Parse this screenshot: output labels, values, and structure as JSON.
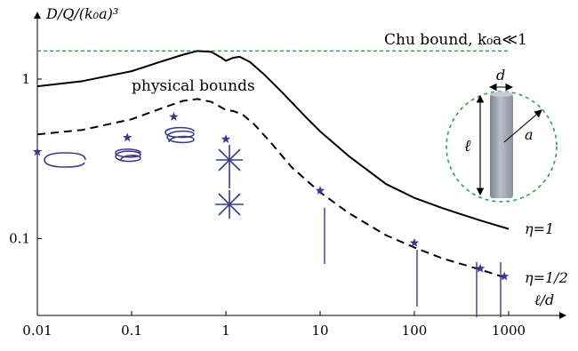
{
  "chart_data": {
    "type": "line",
    "title": "",
    "xlabel": "ℓ/d",
    "ylabel": "D/Q/(k₀a)³",
    "x_scale": "log",
    "y_scale": "log",
    "xlim": [
      0.01,
      1000
    ],
    "ylim": [
      0.033,
      2.3
    ],
    "x_ticks": [
      {
        "value": 0.01,
        "label": "0.01"
      },
      {
        "value": 0.1,
        "label": "0.1"
      },
      {
        "value": 1,
        "label": "1"
      },
      {
        "value": 10,
        "label": "10"
      },
      {
        "value": 100,
        "label": "100"
      },
      {
        "value": 1000,
        "label": "1000"
      }
    ],
    "y_ticks": [
      {
        "value": 0.1,
        "label": "0.1"
      },
      {
        "value": 1,
        "label": "1"
      }
    ],
    "grid": false,
    "series": [
      {
        "name": "",
        "style": "dashed-green",
        "color": "#2ea04a",
        "x": [
          0.01,
          1000
        ],
        "y": [
          1.5,
          1.5
        ]
      },
      {
        "name": "η=1",
        "style": "solid",
        "color": "#000000",
        "x": [
          0.01,
          0.03,
          0.1,
          0.2,
          0.35,
          0.5,
          0.7,
          0.9,
          1.0,
          1.2,
          1.4,
          1.8,
          2.5,
          4,
          7,
          10,
          20,
          50,
          100,
          200,
          500,
          1000
        ],
        "y": [
          0.9,
          0.97,
          1.12,
          1.28,
          1.42,
          1.5,
          1.48,
          1.36,
          1.3,
          1.36,
          1.38,
          1.28,
          1.08,
          0.82,
          0.58,
          0.47,
          0.33,
          0.22,
          0.18,
          0.155,
          0.13,
          0.115
        ]
      },
      {
        "name": "η=1/2",
        "style": "dashed",
        "color": "#000000",
        "x": [
          0.01,
          0.03,
          0.1,
          0.2,
          0.35,
          0.5,
          0.7,
          1.0,
          1.2,
          1.5,
          2,
          3,
          5,
          10,
          20,
          50,
          100,
          200,
          500,
          1000
        ],
        "y": [
          0.45,
          0.48,
          0.56,
          0.65,
          0.73,
          0.75,
          0.72,
          0.64,
          0.63,
          0.6,
          0.52,
          0.4,
          0.28,
          0.195,
          0.145,
          0.105,
          0.088,
          0.075,
          0.064,
          0.056
        ]
      },
      {
        "name": "",
        "style": "markers-star",
        "color": "#3a3a8e",
        "x": [
          0.01,
          0.09,
          0.28,
          1.0,
          10,
          100,
          500,
          900
        ],
        "y": [
          0.35,
          0.43,
          0.58,
          0.42,
          0.2,
          0.094,
          0.065,
          0.058
        ]
      }
    ],
    "annotations": {
      "chu_bound": "Chu bound, k₀a≪1",
      "physical_bounds": "physical bounds",
      "inset_d": "d",
      "inset_l": "ℓ",
      "inset_a": "a"
    }
  },
  "colors": {
    "axis": "#000000",
    "chu": "#2ea04a",
    "antenna": "#3a3a8e",
    "cylinder": "#9aa0ab"
  }
}
